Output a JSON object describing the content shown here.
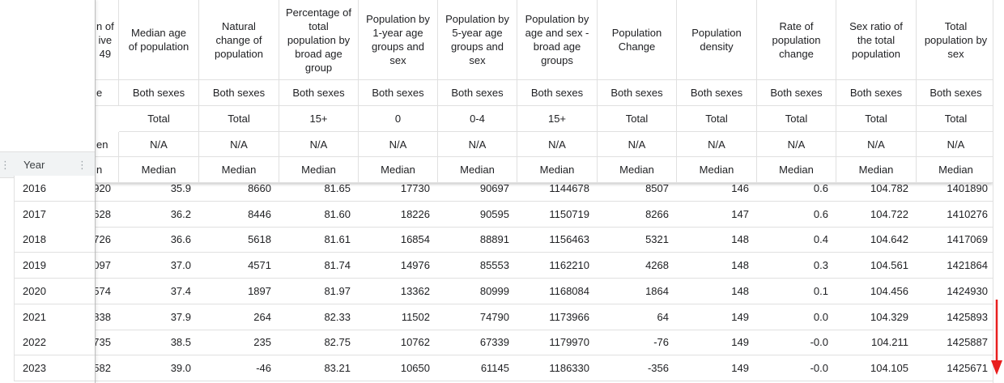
{
  "frozen": {
    "header": "Year",
    "years": [
      "2016",
      "2017",
      "2018",
      "2019",
      "2020",
      "2021",
      "2022",
      "2023"
    ]
  },
  "table": {
    "partial_column": {
      "header": "n of\nive\n49",
      "sex": "e",
      "variant": "en",
      "stat": "n"
    },
    "columns": [
      {
        "header": "Median age of population",
        "sex": "Both sexes",
        "age": "Total",
        "variant": "N/A",
        "stat": "Median"
      },
      {
        "header": "Natural change of population",
        "sex": "Both sexes",
        "age": "Total",
        "variant": "N/A",
        "stat": "Median"
      },
      {
        "header": "Percentage of total population by broad age group",
        "sex": "Both sexes",
        "age": "15+",
        "variant": "N/A",
        "stat": "Median"
      },
      {
        "header": "Population by 1-year age groups and sex",
        "sex": "Both sexes",
        "age": "0",
        "variant": "N/A",
        "stat": "Median"
      },
      {
        "header": "Population by 5-year age groups and sex",
        "sex": "Both sexes",
        "age": "0-4",
        "variant": "N/A",
        "stat": "Median"
      },
      {
        "header": "Population by age and sex - broad age groups",
        "sex": "Both sexes",
        "age": "15+",
        "variant": "N/A",
        "stat": "Median"
      },
      {
        "header": "Population Change",
        "sex": "Both sexes",
        "age": "Total",
        "variant": "N/A",
        "stat": "Median"
      },
      {
        "header": "Population density",
        "sex": "Both sexes",
        "age": "Total",
        "variant": "N/A",
        "stat": "Median"
      },
      {
        "header": "Rate of population change",
        "sex": "Both sexes",
        "age": "Total",
        "variant": "N/A",
        "stat": "Median"
      },
      {
        "header": "Sex ratio of the total population",
        "sex": "Both sexes",
        "age": "Total",
        "variant": "N/A",
        "stat": "Median"
      },
      {
        "header": "Total population by sex",
        "sex": "Both sexes",
        "age": "Total",
        "variant": "N/A",
        "stat": "Median"
      }
    ],
    "rows": [
      [
        "920",
        "35.9",
        "8660",
        "81.65",
        "17730",
        "90697",
        "1144678",
        "8507",
        "146",
        "0.6",
        "104.782",
        "1401890"
      ],
      [
        "628",
        "36.2",
        "8446",
        "81.60",
        "18226",
        "90595",
        "1150719",
        "8266",
        "147",
        "0.6",
        "104.722",
        "1410276"
      ],
      [
        "726",
        "36.6",
        "5618",
        "81.61",
        "16854",
        "88891",
        "1156463",
        "5321",
        "148",
        "0.4",
        "104.642",
        "1417069"
      ],
      [
        "097",
        "37.0",
        "4571",
        "81.74",
        "14976",
        "85553",
        "1162210",
        "4268",
        "148",
        "0.3",
        "104.561",
        "1421864"
      ],
      [
        "574",
        "37.4",
        "1897",
        "81.97",
        "13362",
        "80999",
        "1168084",
        "1864",
        "148",
        "0.1",
        "104.456",
        "1424930"
      ],
      [
        "838",
        "37.9",
        "264",
        "82.33",
        "11502",
        "74790",
        "1173966",
        "64",
        "149",
        "0.0",
        "104.329",
        "1425893"
      ],
      [
        "735",
        "38.5",
        "235",
        "82.75",
        "10762",
        "67339",
        "1179970",
        "-76",
        "149",
        "-0.0",
        "104.211",
        "1425887"
      ],
      [
        "582",
        "39.0",
        "-46",
        "83.21",
        "10650",
        "61145",
        "1186330",
        "-356",
        "149",
        "-0.0",
        "104.105",
        "1425671"
      ]
    ]
  }
}
